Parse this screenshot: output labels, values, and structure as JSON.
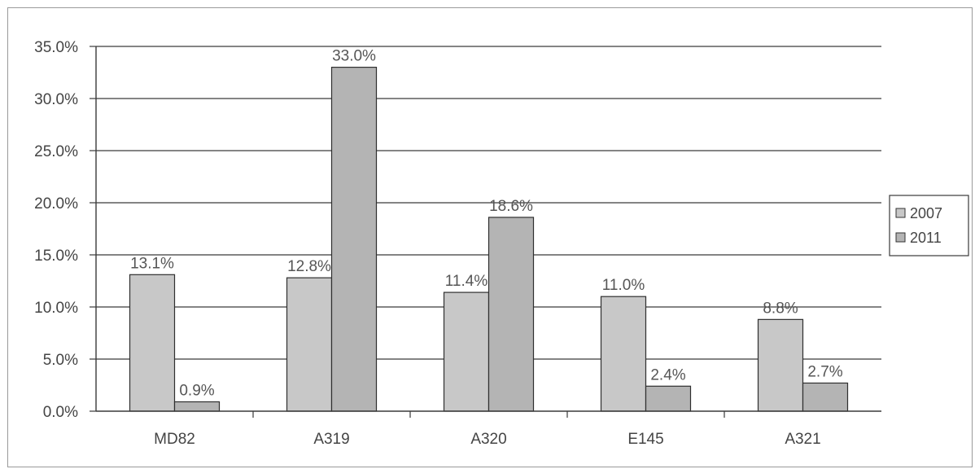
{
  "chart_data": {
    "type": "bar",
    "title": "",
    "xlabel": "",
    "ylabel": "",
    "categories": [
      "MD82",
      "A319",
      "A320",
      "E145",
      "A321"
    ],
    "series": [
      {
        "name": "2007",
        "values": [
          13.1,
          12.8,
          11.4,
          11.0,
          8.8
        ],
        "labels": [
          "13.1%",
          "12.8%",
          "11.4%",
          "11.0%",
          "8.8%"
        ],
        "color": "#c8c8c8"
      },
      {
        "name": "2011",
        "values": [
          0.9,
          33.0,
          18.6,
          2.4,
          2.7
        ],
        "labels": [
          "0.9%",
          "33.0%",
          "18.6%",
          "2.4%",
          "2.7%"
        ],
        "color": "#b4b4b4"
      }
    ],
    "ylim": [
      0,
      35
    ],
    "yticks": [
      "0.0%",
      "5.0%",
      "10.0%",
      "15.0%",
      "20.0%",
      "25.0%",
      "30.0%",
      "35.0%"
    ],
    "grid": true,
    "legend_position": "right"
  }
}
